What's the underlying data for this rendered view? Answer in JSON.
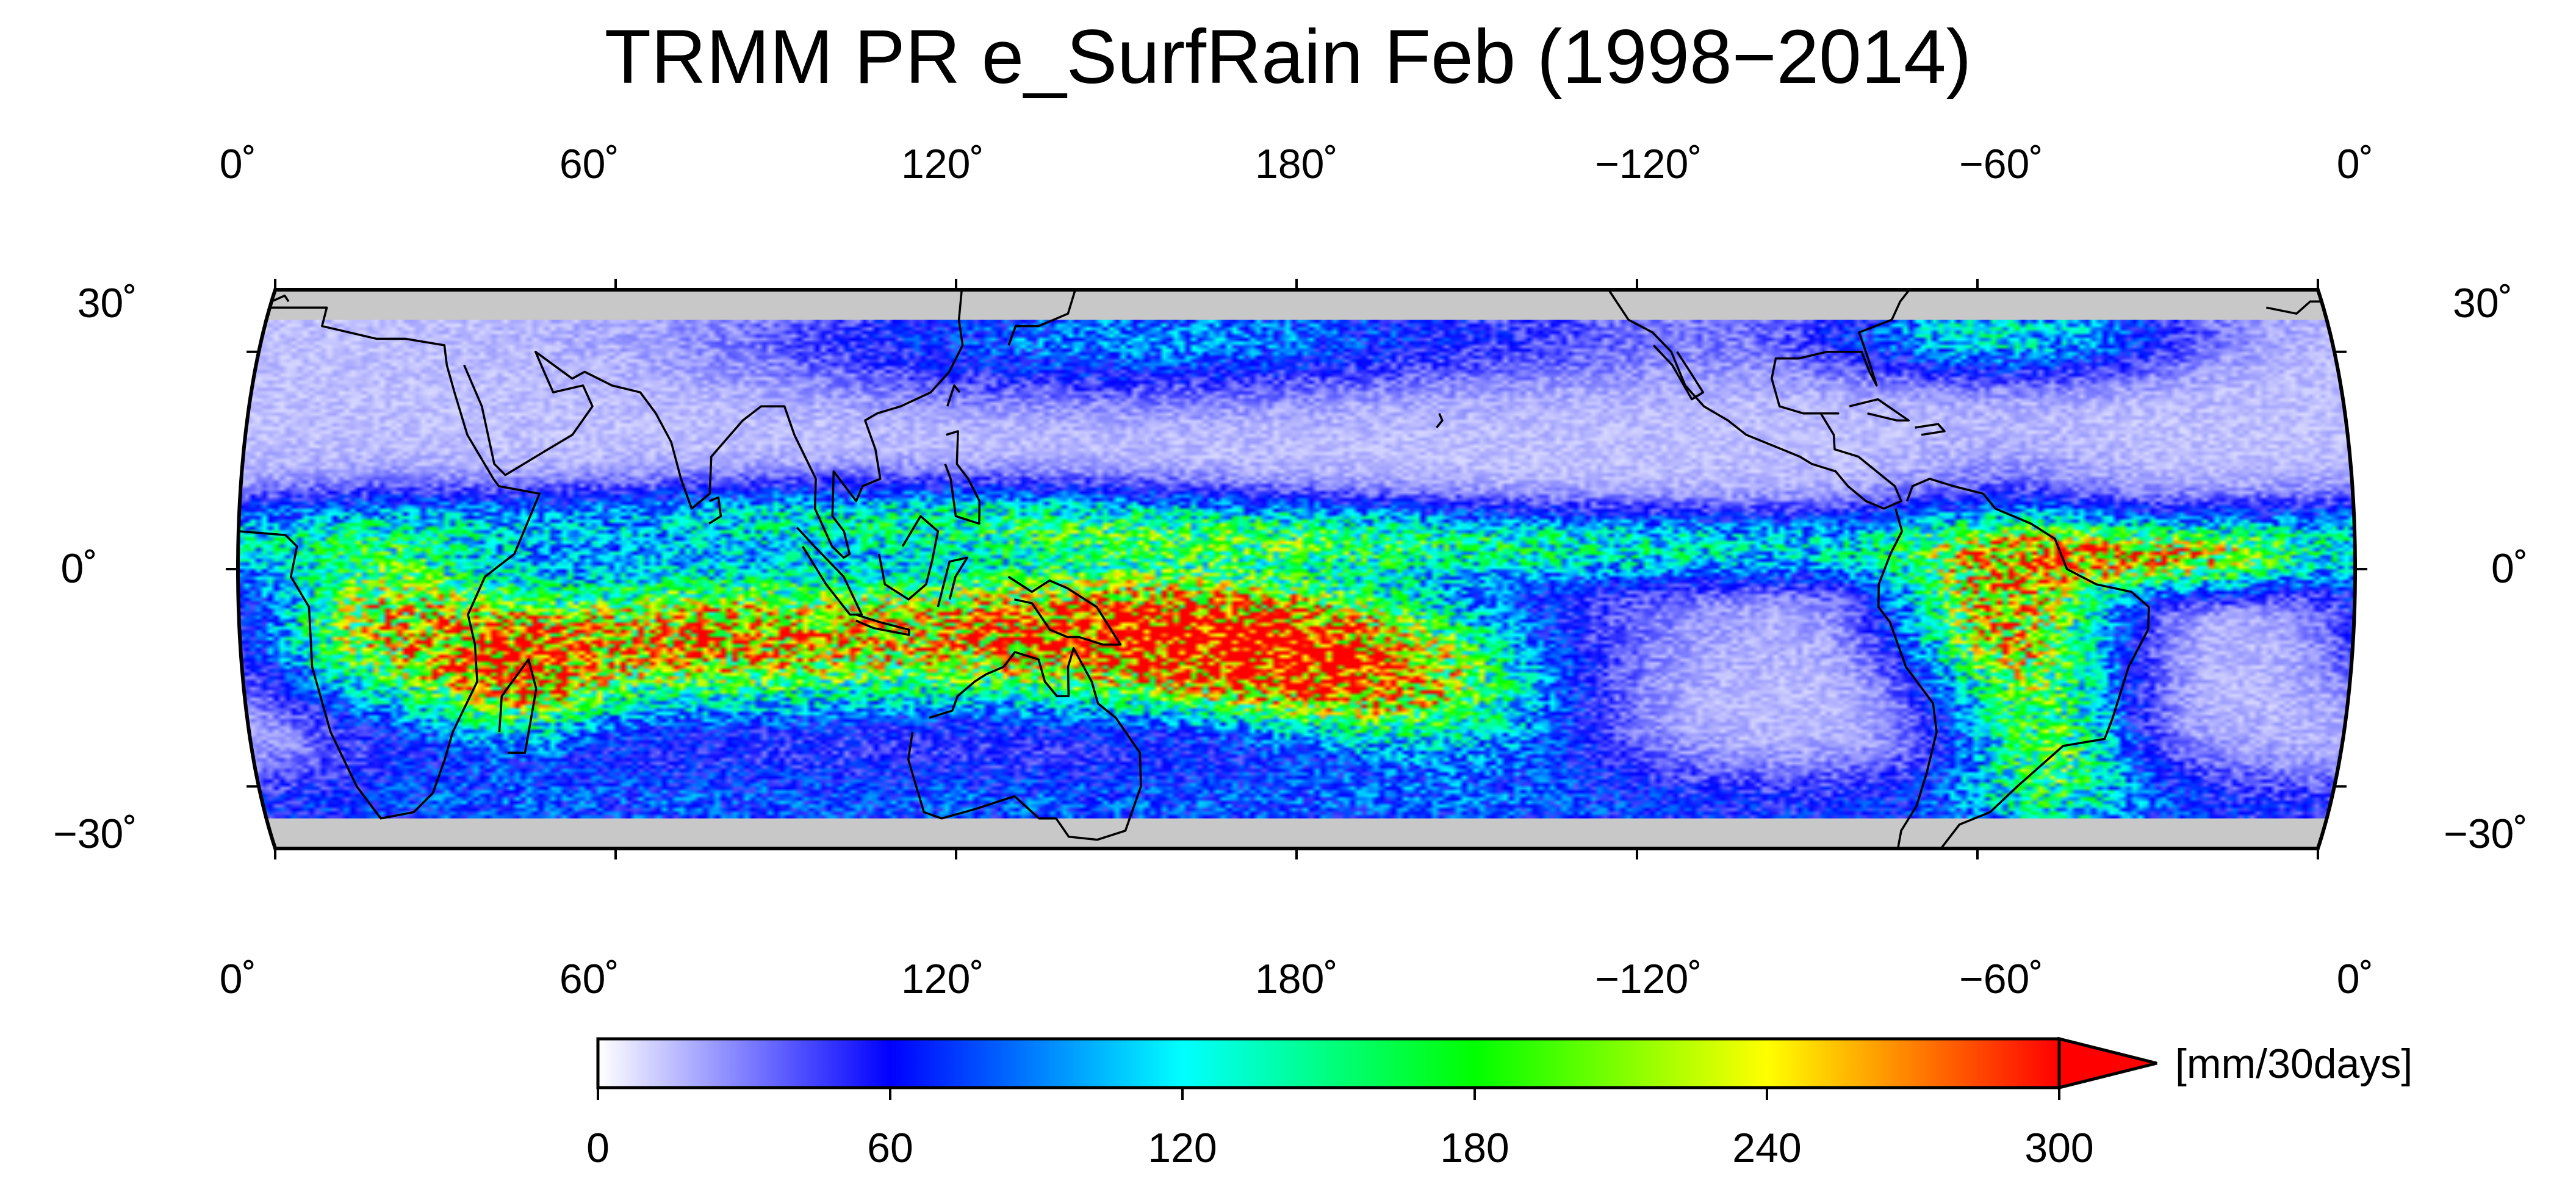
{
  "title": "TRMM PR e_SurfRain Feb (1998−2014)",
  "map": {
    "projection": "equal-area, centered 180",
    "lon_ticks_top": [
      "0˚",
      "60˚",
      "120˚",
      "180˚",
      "−120˚",
      "−60˚",
      "0˚"
    ],
    "lon_ticks_bottom": [
      "0˚",
      "60˚",
      "120˚",
      "180˚",
      "−120˚",
      "−60˚",
      "0˚"
    ],
    "lat_ticks_left": [
      "30˚",
      "0˚",
      "−30˚"
    ],
    "lat_ticks_right": [
      "30˚",
      "0˚",
      "−30˚"
    ],
    "lat_range": [
      -40,
      40
    ],
    "data_lat_range": [
      -35,
      35
    ],
    "no_data_color": "#c8c8c8"
  },
  "colorbar": {
    "ticks": [
      "0",
      "60",
      "120",
      "180",
      "240",
      "300"
    ],
    "range": [
      0,
      300
    ],
    "extend": "max",
    "unit_label": "[mm/30days]",
    "colors": [
      "#ffffff",
      "#0000ff",
      "#00ffff",
      "#00ff00",
      "#ffff00",
      "#ff0000"
    ]
  }
}
